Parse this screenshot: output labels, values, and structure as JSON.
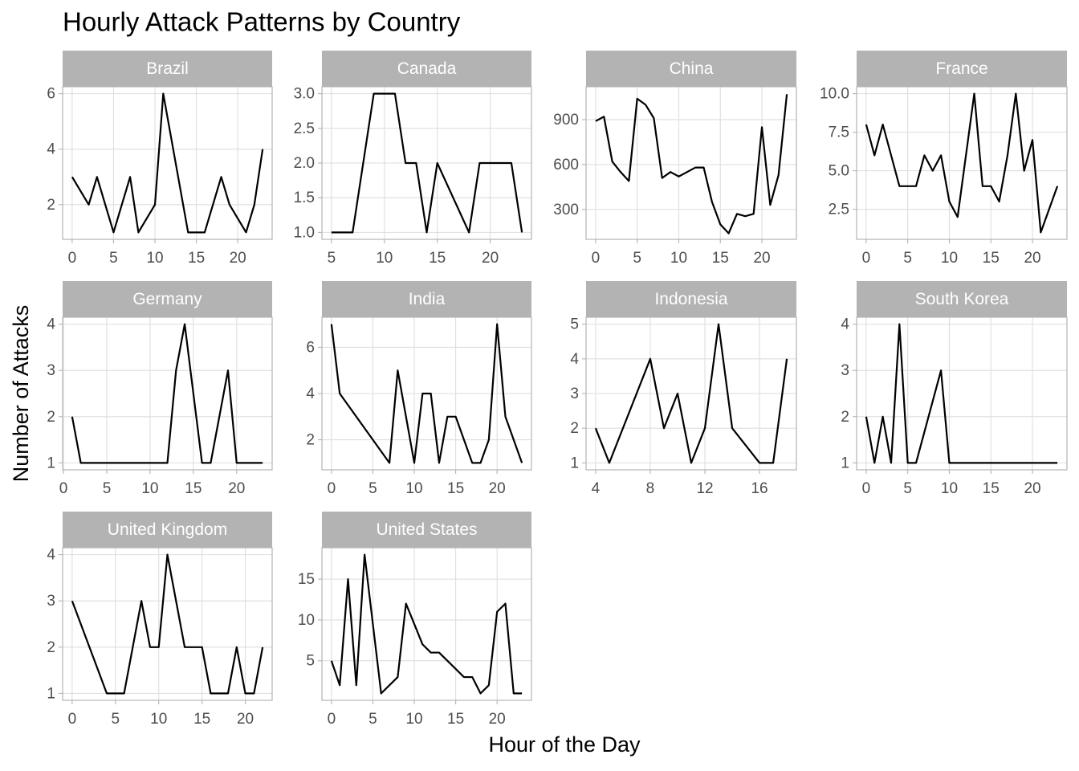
{
  "title": "Hourly Attack Patterns by Country",
  "x_label": "Hour of the Day",
  "y_label": "Number of Attacks",
  "chart_data": [
    {
      "type": "line",
      "title": "Brazil",
      "color": "#000000",
      "grid": true,
      "x": [
        0,
        2,
        3,
        5,
        7,
        8,
        10,
        11,
        14,
        16,
        18,
        19,
        21,
        22,
        23
      ],
      "values": [
        3,
        2,
        3,
        1,
        3,
        1,
        2,
        6,
        1,
        1,
        3,
        2,
        1,
        2,
        4
      ],
      "xlim": [
        -1.15,
        24.15
      ],
      "ylim": [
        0.75,
        6.25
      ],
      "xticks": [
        0,
        5,
        10,
        15,
        20
      ],
      "yticks": [
        2,
        4,
        6
      ]
    },
    {
      "type": "line",
      "title": "Canada",
      "color": "#000000",
      "grid": true,
      "x": [
        5,
        7,
        9,
        11,
        12,
        13,
        14,
        15,
        18,
        19,
        22,
        23
      ],
      "values": [
        1,
        1,
        3,
        3,
        2,
        2,
        1,
        2,
        1,
        2,
        2,
        1
      ],
      "xlim": [
        4.1,
        23.9
      ],
      "ylim": [
        0.9,
        3.1
      ],
      "xticks": [
        5,
        10,
        15,
        20
      ],
      "yticks": [
        {
          "value": 1,
          "label": "1.0"
        },
        1.5,
        {
          "value": 2,
          "label": "2.0"
        },
        2.5,
        {
          "value": 3,
          "label": "3.0"
        }
      ]
    },
    {
      "type": "line",
      "title": "China",
      "color": "#000000",
      "grid": true,
      "x": [
        0,
        1,
        2,
        3,
        4,
        5,
        6,
        7,
        8,
        9,
        10,
        11,
        12,
        13,
        14,
        15,
        16,
        17,
        18,
        19,
        20,
        21,
        22,
        23
      ],
      "values": [
        890,
        920,
        620,
        550,
        490,
        1040,
        1000,
        910,
        510,
        550,
        520,
        550,
        580,
        580,
        350,
        200,
        140,
        270,
        255,
        270,
        850,
        330,
        530,
        1070
      ],
      "xlim": [
        -1.15,
        24.15
      ],
      "ylim": [
        100,
        1120
      ],
      "xticks": [
        0,
        5,
        10,
        15,
        20
      ],
      "yticks": [
        300,
        600,
        900
      ]
    },
    {
      "type": "line",
      "title": "France",
      "color": "#000000",
      "grid": true,
      "x": [
        0,
        1,
        2,
        4,
        6,
        7,
        8,
        9,
        10,
        11,
        13,
        14,
        15,
        16,
        17,
        18,
        19,
        20,
        21,
        23
      ],
      "values": [
        8,
        6,
        8,
        4,
        4,
        6,
        5,
        6,
        3,
        2,
        10,
        4,
        4,
        3,
        6,
        10,
        5,
        7,
        1,
        4
      ],
      "xlim": [
        -1.15,
        24.15
      ],
      "ylim": [
        0.55,
        10.45
      ],
      "xticks": [
        0,
        5,
        10,
        15,
        20
      ],
      "yticks": [
        2.5,
        {
          "value": 5,
          "label": "5.0"
        },
        7.5,
        {
          "value": 10,
          "label": "10.0"
        }
      ]
    },
    {
      "type": "line",
      "title": "Germany",
      "color": "#000000",
      "grid": true,
      "x": [
        1,
        2,
        12,
        13,
        14,
        16,
        17,
        19,
        20,
        23
      ],
      "values": [
        2,
        1,
        1,
        3,
        4,
        1,
        1,
        3,
        1,
        1
      ],
      "xlim": [
        -0.1,
        24.1
      ],
      "ylim": [
        0.85,
        4.15
      ],
      "xticks": [
        0,
        5,
        10,
        15,
        20
      ],
      "yticks": [
        1,
        2,
        3,
        4
      ]
    },
    {
      "type": "line",
      "title": "India",
      "color": "#000000",
      "grid": true,
      "x": [
        0,
        1,
        7,
        8,
        10,
        11,
        12,
        13,
        14,
        15,
        17,
        18,
        19,
        20,
        21,
        23
      ],
      "values": [
        7,
        4,
        1,
        5,
        1,
        4,
        4,
        1,
        3,
        3,
        1,
        1,
        2,
        7,
        3,
        1
      ],
      "xlim": [
        -1.15,
        24.15
      ],
      "ylim": [
        0.7,
        7.3
      ],
      "xticks": [
        0,
        5,
        10,
        15,
        20
      ],
      "yticks": [
        2,
        4,
        6
      ]
    },
    {
      "type": "line",
      "title": "Indonesia",
      "color": "#000000",
      "grid": true,
      "x": [
        4,
        5,
        8,
        9,
        10,
        11,
        12,
        13,
        14,
        16,
        17,
        18
      ],
      "values": [
        2,
        1,
        4,
        2,
        3,
        1,
        2,
        5,
        2,
        1,
        1,
        4
      ],
      "xlim": [
        3.3,
        18.7
      ],
      "ylim": [
        0.8,
        5.2
      ],
      "xticks": [
        4,
        8,
        12,
        16
      ],
      "yticks": [
        1,
        2,
        3,
        4,
        5
      ]
    },
    {
      "type": "line",
      "title": "South Korea",
      "color": "#000000",
      "grid": true,
      "x": [
        0,
        1,
        2,
        3,
        4,
        5,
        6,
        9,
        10,
        23
      ],
      "values": [
        2,
        1,
        2,
        1,
        4,
        1,
        1,
        3,
        1,
        1
      ],
      "xlim": [
        -1.15,
        24.15
      ],
      "ylim": [
        0.85,
        4.15
      ],
      "xticks": [
        0,
        5,
        10,
        15,
        20
      ],
      "yticks": [
        1,
        2,
        3,
        4
      ]
    },
    {
      "type": "line",
      "title": "United Kingdom",
      "color": "#000000",
      "grid": true,
      "x": [
        0,
        4,
        6,
        8,
        9,
        10,
        11,
        13,
        15,
        16,
        18,
        19,
        20,
        21,
        22
      ],
      "values": [
        3,
        1,
        1,
        3,
        2,
        2,
        4,
        2,
        2,
        1,
        1,
        2,
        1,
        1,
        2
      ],
      "xlim": [
        -1.1,
        23.1
      ],
      "ylim": [
        0.85,
        4.15
      ],
      "xticks": [
        0,
        5,
        10,
        15,
        20
      ],
      "yticks": [
        1,
        2,
        3,
        4
      ]
    },
    {
      "type": "line",
      "title": "United States",
      "color": "#000000",
      "grid": true,
      "x": [
        0,
        1,
        2,
        3,
        4,
        6,
        8,
        9,
        11,
        12,
        13,
        16,
        17,
        18,
        19,
        20,
        21,
        22,
        23
      ],
      "values": [
        5,
        2,
        15,
        2,
        18,
        1,
        3,
        12,
        7,
        6,
        6,
        3,
        3,
        1,
        2,
        11,
        12,
        1,
        1
      ],
      "xlim": [
        -1.15,
        24.15
      ],
      "ylim": [
        0.15,
        18.85
      ],
      "xticks": [
        0,
        5,
        10,
        15,
        20
      ],
      "yticks": [
        5,
        10,
        15
      ]
    }
  ]
}
